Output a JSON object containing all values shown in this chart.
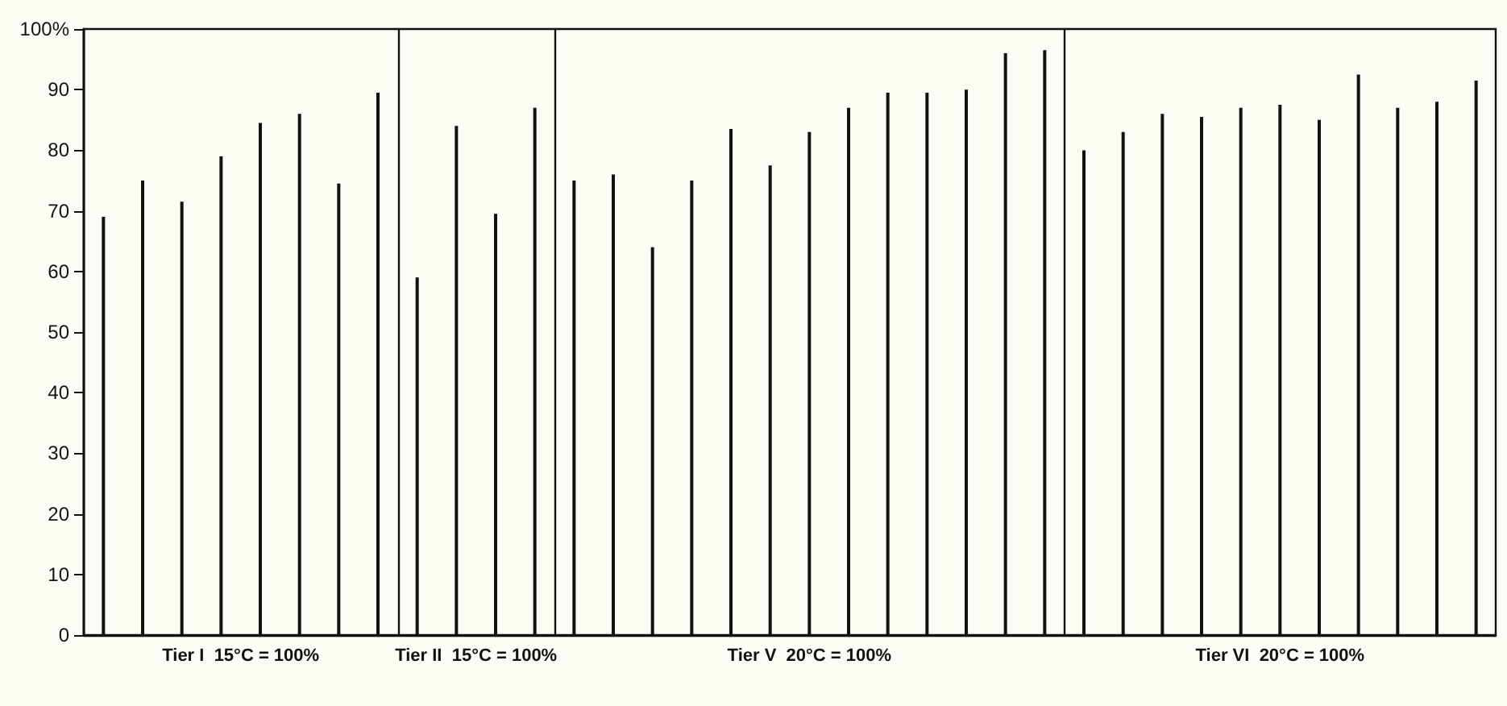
{
  "chart_data": {
    "type": "bar",
    "categories": [
      null,
      null,
      null,
      null,
      null,
      null,
      null,
      null,
      null,
      null,
      null,
      null,
      null,
      null,
      null,
      null,
      null,
      null,
      null,
      null,
      null,
      null,
      null,
      null,
      null,
      null,
      null,
      null,
      null,
      null,
      null,
      null,
      null,
      null,
      null,
      null
    ],
    "series": [
      {
        "name": "Tier I  15°C = 100%",
        "color": "#111111",
        "values": [
          69,
          75,
          71.5,
          79,
          84.5,
          86,
          74.5,
          89.5,
          null,
          null,
          null,
          null,
          null,
          null,
          null,
          null,
          null,
          null,
          null,
          null,
          null,
          null,
          null,
          null,
          null,
          null,
          null,
          null,
          null,
          null,
          null,
          null,
          null,
          null,
          null,
          null
        ]
      },
      {
        "name": "Tier II  15°C = 100%",
        "color": "#111111",
        "values": [
          null,
          null,
          null,
          null,
          null,
          null,
          null,
          null,
          59,
          84,
          69.5,
          87,
          null,
          null,
          null,
          null,
          null,
          null,
          null,
          null,
          null,
          null,
          null,
          null,
          null,
          null,
          null,
          null,
          null,
          null,
          null,
          null,
          null,
          null,
          null,
          null
        ]
      },
      {
        "name": "Tier V  20°C = 100%",
        "color": "#111111",
        "values": [
          null,
          null,
          null,
          null,
          null,
          null,
          null,
          null,
          null,
          null,
          null,
          null,
          75,
          76,
          64,
          75,
          83.5,
          77.5,
          83,
          87,
          89.5,
          89.5,
          90,
          96,
          96.5,
          null,
          null,
          null,
          null,
          null,
          null,
          null,
          null,
          null,
          null,
          null
        ]
      },
      {
        "name": "Tier VI  20°C = 100%",
        "color": "#111111",
        "values": [
          null,
          null,
          null,
          null,
          null,
          null,
          null,
          null,
          null,
          null,
          null,
          null,
          null,
          null,
          null,
          null,
          null,
          null,
          null,
          null,
          null,
          null,
          null,
          null,
          null,
          80,
          83,
          86,
          85.5,
          87,
          87.5,
          85,
          92.5,
          87,
          88,
          91.5
        ]
      }
    ],
    "ylim": [
      0,
      100
    ],
    "yticks": [
      0,
      10,
      20,
      30,
      40,
      50,
      60,
      70,
      80,
      90,
      {
        "value": 100,
        "label": "100%"
      }
    ],
    "grid": false,
    "legend": false,
    "tick_labels": "y"
  }
}
